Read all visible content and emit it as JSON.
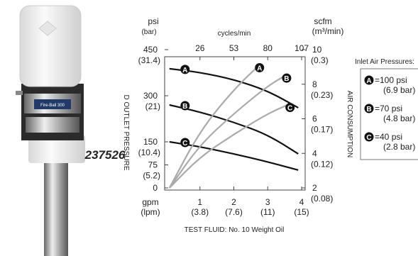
{
  "chart_data": {
    "type": "line",
    "product_number": "237526",
    "product_label": "Fire-Ball 300",
    "y_label": "psi",
    "y_label_sub": "(bar)",
    "y2_label": "scfm",
    "y2_label_sub": "(m³/min)",
    "x_label": "gpm",
    "x_label_sub": "(lpm)",
    "top_label": "cycles/min",
    "y_title": "D OUTLET PRESSURE",
    "y2_title": "AIR CONSUMPTION",
    "footer": "TEST FLUID: No. 10 Weight Oil",
    "xlim": [
      0,
      4
    ],
    "xticks": [
      {
        "value": 1,
        "label": "1",
        "sublabel": "(3.8)"
      },
      {
        "value": 2,
        "label": "2",
        "sublabel": "(7.6)"
      },
      {
        "value": 3,
        "label": "3",
        "sublabel": "(11)"
      },
      {
        "value": 4,
        "label": "4",
        "sublabel": "(15)"
      }
    ],
    "top_ticks": [
      {
        "value": 1,
        "label": "26"
      },
      {
        "value": 2,
        "label": "53"
      },
      {
        "value": 3,
        "label": "80"
      },
      {
        "value": 4,
        "label": "107"
      }
    ],
    "ylim": [
      0,
      450
    ],
    "yticks": [
      {
        "value": 0,
        "label": "0"
      },
      {
        "value": 75,
        "label": "75",
        "sublabel": "(5.2)"
      },
      {
        "value": 150,
        "label": "150",
        "sublabel": "(10.4)"
      },
      {
        "value": 300,
        "label": "300",
        "sublabel": "(21)"
      },
      {
        "value": 450,
        "label": "450",
        "sublabel": "(31.4)"
      }
    ],
    "y2lim": [
      2,
      10
    ],
    "y2ticks": [
      {
        "value": 2,
        "label": "2",
        "sublabel": "(0.08)"
      },
      {
        "value": 4,
        "label": "4",
        "sublabel": "(0.12)"
      },
      {
        "value": 6,
        "label": "6",
        "sublabel": "(0.17)"
      },
      {
        "value": 8,
        "label": "8",
        "sublabel": "(0.23)"
      },
      {
        "value": 10,
        "label": "10",
        "sublabel": "(0.3)"
      }
    ],
    "series": [
      {
        "name": "A",
        "color": "#111111",
        "label_at": "start",
        "x": [
          0.1,
          1,
          2,
          3,
          3.9
        ],
        "values": [
          388,
          376,
          353,
          316,
          261
        ]
      },
      {
        "name": "B",
        "color": "#111111",
        "label_at": "start",
        "x": [
          0.1,
          1,
          2,
          3,
          3.9
        ],
        "values": [
          270,
          247,
          214,
          173,
          111
        ]
      },
      {
        "name": "C",
        "color": "#111111",
        "label_at": "start",
        "x": [
          0.1,
          1,
          2,
          3,
          3.9
        ],
        "values": [
          150,
          134,
          111,
          85,
          58
        ]
      },
      {
        "name": "A",
        "color": "#aaaaaa",
        "axis": "y2",
        "label_at": "end",
        "x": [
          0.1,
          1,
          2,
          2.8
        ],
        "values": [
          2,
          5.3,
          7.7,
          9.2
        ]
      },
      {
        "name": "B",
        "color": "#aaaaaa",
        "axis": "y2",
        "label_at": "end",
        "x": [
          0.1,
          1,
          2,
          3,
          3.6
        ],
        "values": [
          2,
          4.5,
          6.3,
          7.9,
          8.6
        ]
      },
      {
        "name": "C",
        "color": "#aaaaaa",
        "axis": "y2",
        "label_at": "end",
        "x": [
          0.1,
          1,
          2,
          3,
          3.7
        ],
        "values": [
          2,
          3.8,
          5.1,
          6.3,
          6.9
        ]
      }
    ],
    "legend": {
      "title": "Inlet Air Pressures:",
      "items": [
        {
          "letter": "A",
          "text": "=100 psi",
          "sub": "(6.9 bar)"
        },
        {
          "letter": "B",
          "text": "=70 psi",
          "sub": "(4.8 bar)"
        },
        {
          "letter": "C",
          "text": "=40 psi",
          "sub": "(2.8 bar)"
        }
      ]
    }
  }
}
